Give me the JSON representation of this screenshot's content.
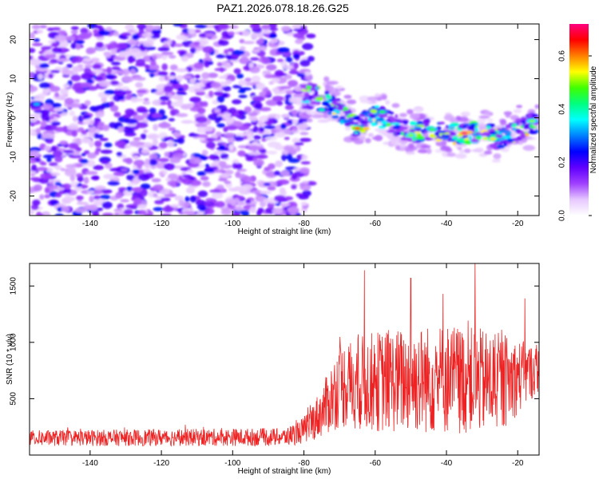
{
  "title": "PAZ1.2026.078.18.26.G25",
  "chart_data": [
    {
      "type": "heatmap",
      "name": "spectrogram",
      "xlabel": "Height of straight line (km)",
      "ylabel": "Frequency (Hz)",
      "xlim": [
        -157,
        -14
      ],
      "ylim": [
        -25,
        24
      ],
      "xticks": [
        -140,
        -120,
        -100,
        -80,
        -60,
        -40,
        -20
      ],
      "yticks": [
        20,
        10,
        0,
        -10,
        -20
      ],
      "noise_region_x": [
        -157,
        -80
      ],
      "signal_track": [
        {
          "x": -155,
          "y": 3.5
        },
        {
          "x": -78,
          "y": 6.5
        },
        {
          "x": -70,
          "y": 2
        },
        {
          "x": -65,
          "y": -2.5
        },
        {
          "x": -60,
          "y": 1
        },
        {
          "x": -55,
          "y": -1.5
        },
        {
          "x": -50,
          "y": -4
        },
        {
          "x": -45,
          "y": -3
        },
        {
          "x": -40,
          "y": -4
        },
        {
          "x": -35,
          "y": -4
        },
        {
          "x": -30,
          "y": -3.5
        },
        {
          "x": -25,
          "y": -5.5
        },
        {
          "x": -20,
          "y": -3
        },
        {
          "x": -15,
          "y": -1
        }
      ],
      "colorbar": {
        "label": "Normalized spectral amplitude",
        "range": [
          0,
          0.72
        ],
        "ticks": [
          "0.0",
          "0.2",
          "0.4",
          "0.6"
        ],
        "tick_values": [
          0.0,
          0.2,
          0.4,
          0.6
        ],
        "colors": [
          "#ffffff",
          "#e6c8ff",
          "#a040ff",
          "#6000ff",
          "#0000ff",
          "#0080ff",
          "#00ffff",
          "#00ff80",
          "#40ff00",
          "#ffff00",
          "#ff8000",
          "#ff0000",
          "#ff0080"
        ]
      }
    },
    {
      "type": "line",
      "name": "snr",
      "xlabel": "Height of straight line (km)",
      "ylabel": "SNR (10 * v/v)",
      "xlim": [
        -157,
        -14
      ],
      "ylim": [
        0,
        1700
      ],
      "xticks": [
        -140,
        -120,
        -100,
        -80,
        -60,
        -40,
        -20
      ],
      "yticks": [
        500,
        1000,
        1500
      ],
      "color": "#ee2222",
      "envelope": [
        {
          "x": -157,
          "mean": 150,
          "amp": 70
        },
        {
          "x": -120,
          "mean": 155,
          "amp": 75
        },
        {
          "x": -85,
          "mean": 160,
          "amp": 80
        },
        {
          "x": -80,
          "mean": 220,
          "amp": 120
        },
        {
          "x": -75,
          "mean": 380,
          "amp": 220
        },
        {
          "x": -70,
          "mean": 620,
          "amp": 380
        },
        {
          "x": -60,
          "mean": 650,
          "amp": 450
        },
        {
          "x": -40,
          "mean": 680,
          "amp": 500
        },
        {
          "x": -25,
          "mean": 640,
          "amp": 450
        },
        {
          "x": -14,
          "mean": 760,
          "amp": 200
        }
      ],
      "peaks": [
        {
          "x": -63,
          "y": 1640
        },
        {
          "x": -50,
          "y": 1570
        },
        {
          "x": -41,
          "y": 1430
        },
        {
          "x": -32,
          "y": 1700
        },
        {
          "x": -18,
          "y": 1390
        }
      ]
    }
  ]
}
